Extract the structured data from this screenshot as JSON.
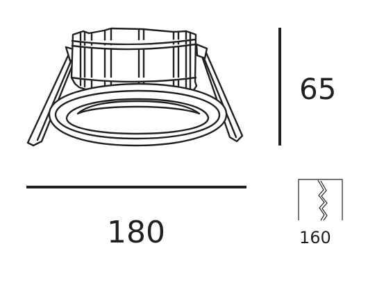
{
  "dimensions": {
    "height": "65",
    "width": "180",
    "cutout": "160"
  },
  "colors": {
    "line": "#231f20",
    "background": "#ffffff"
  },
  "icons": {
    "product": "recessed-downlight-drawing",
    "cutout": "ceiling-cutout-icon"
  }
}
